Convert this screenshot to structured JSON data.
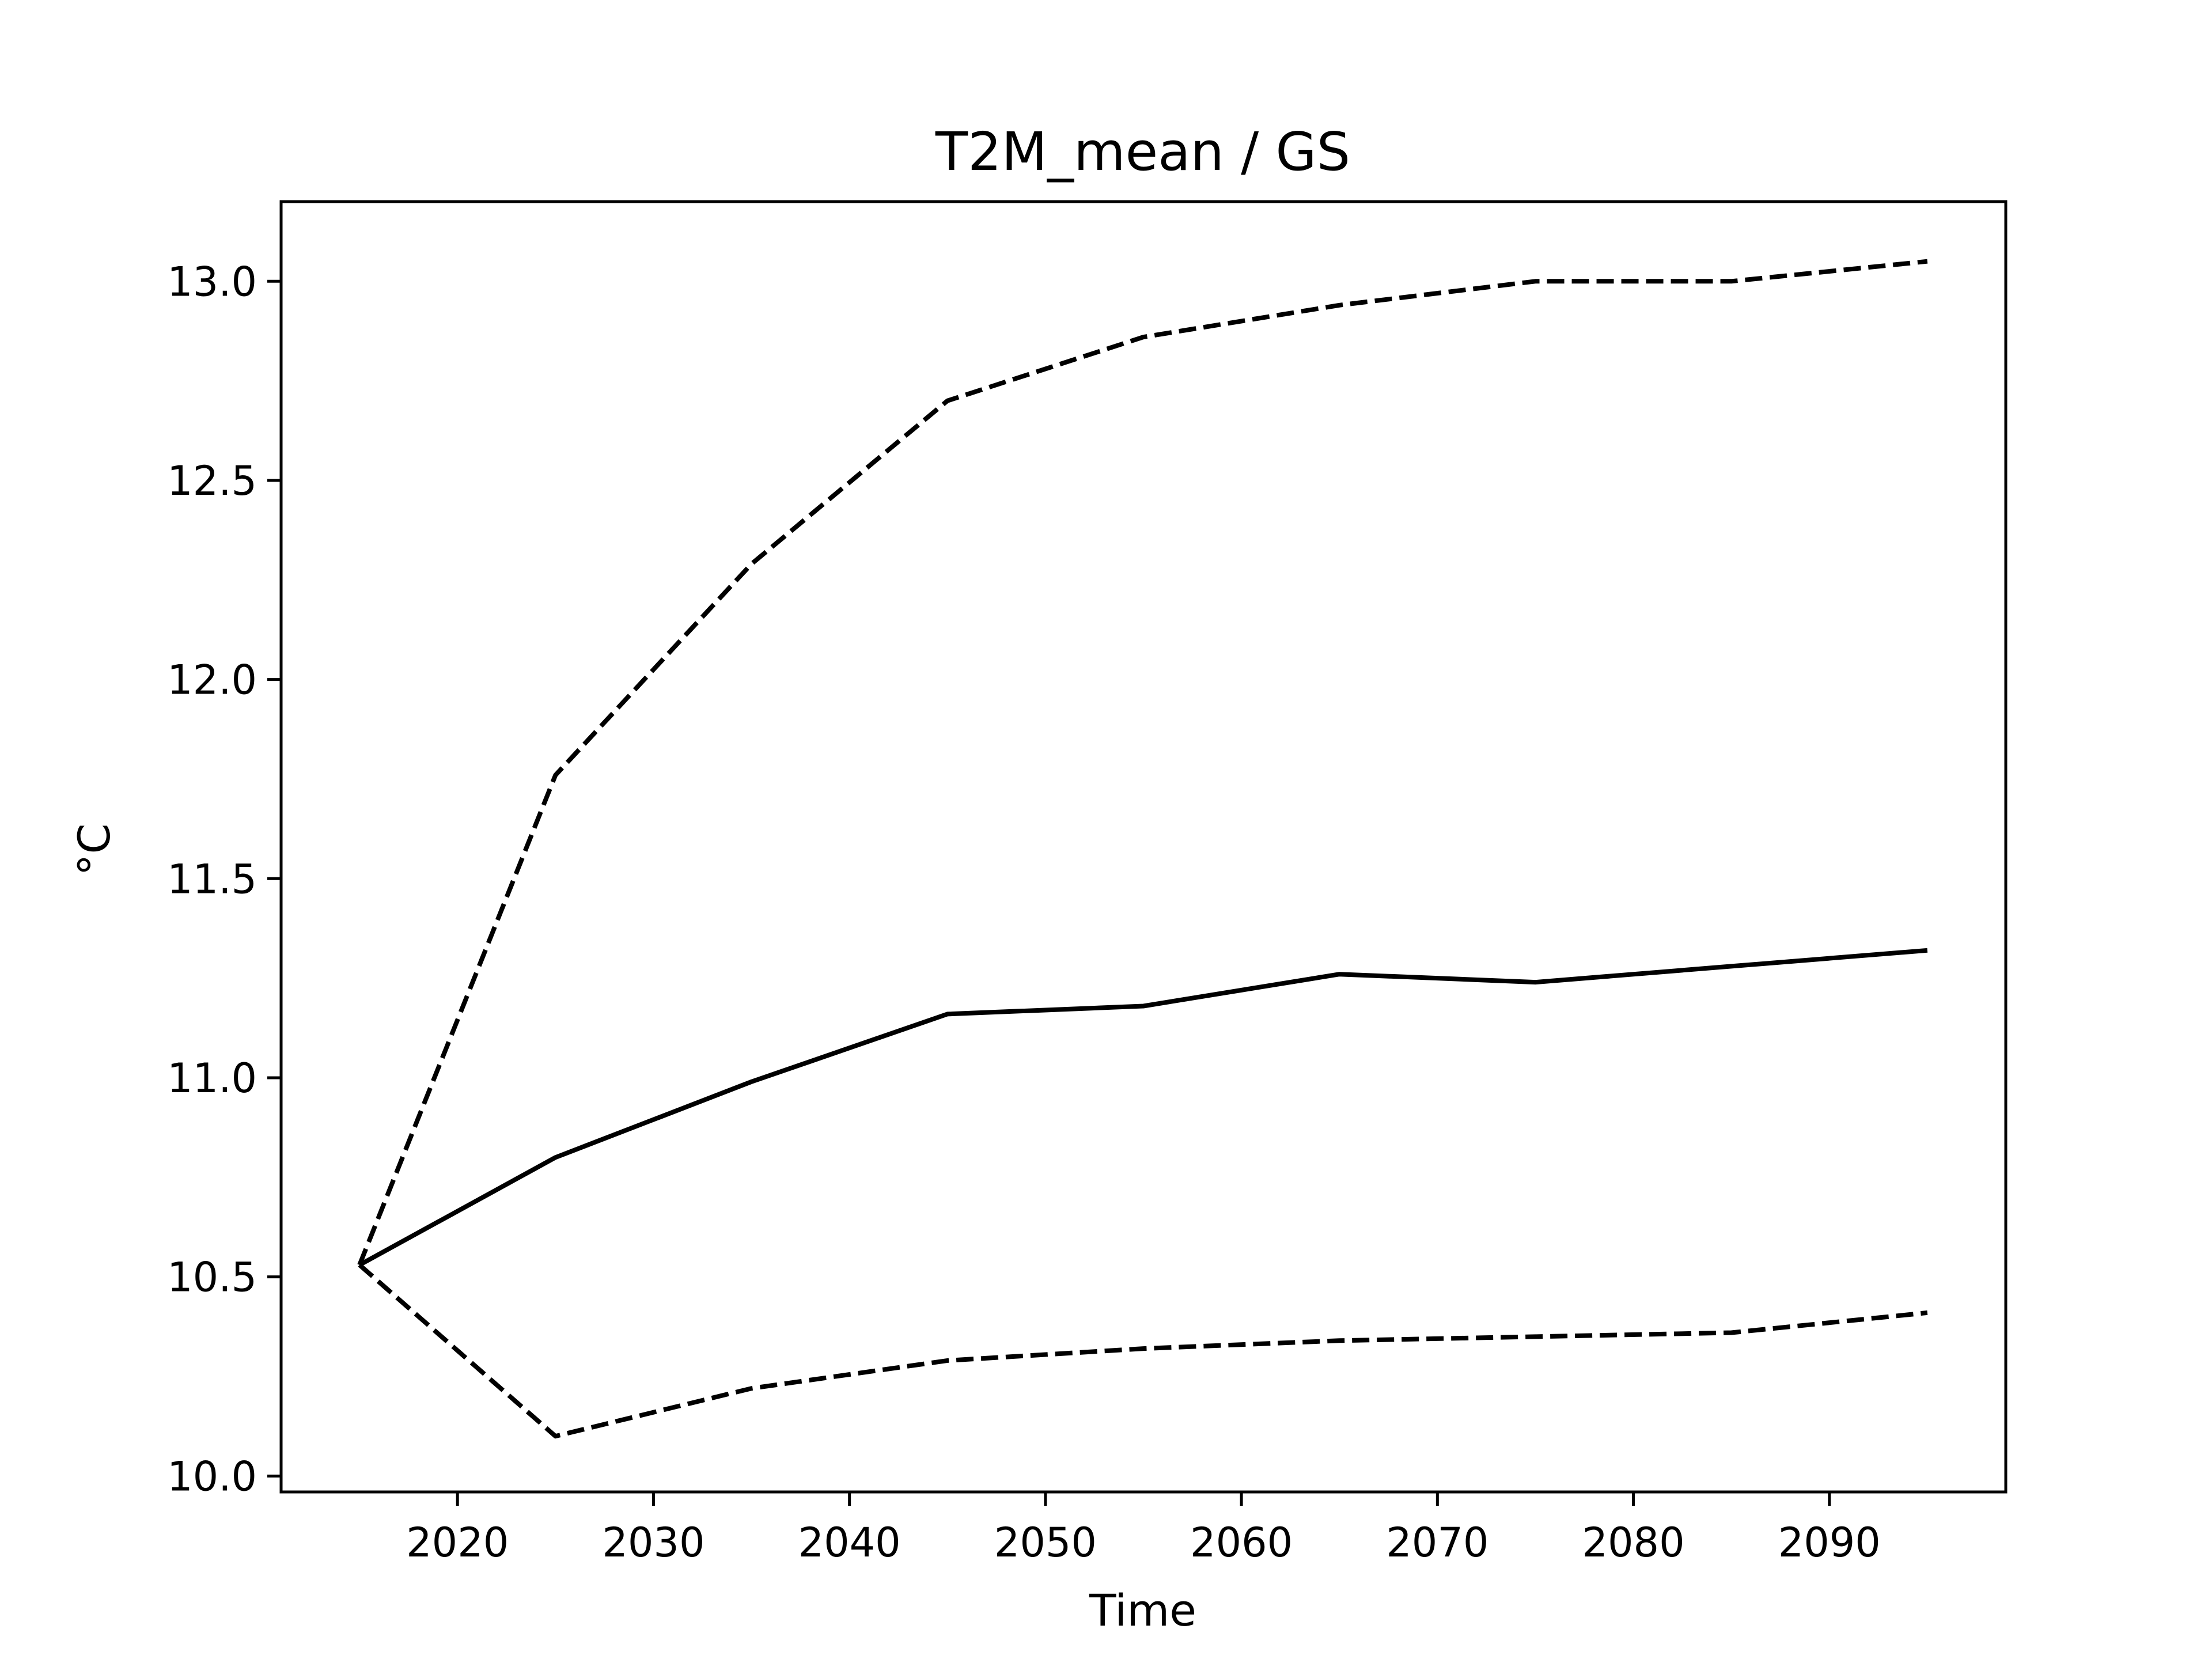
{
  "chart_data": {
    "type": "line",
    "title": "T2M_mean / GS",
    "xlabel": "Time",
    "ylabel": "°C",
    "xlim": [
      2011,
      2099
    ],
    "ylim": [
      9.96,
      13.2
    ],
    "x_ticks": [
      2020,
      2030,
      2040,
      2050,
      2060,
      2070,
      2080,
      2090
    ],
    "y_ticks": [
      10.0,
      10.5,
      11.0,
      11.5,
      12.0,
      12.5,
      13.0
    ],
    "y_tick_labels": [
      "10.0",
      "10.5",
      "11.0",
      "11.5",
      "12.0",
      "12.5",
      "13.0"
    ],
    "grid": false,
    "x": [
      2015,
      2025,
      2035,
      2045,
      2055,
      2065,
      2075,
      2085,
      2095
    ],
    "series": [
      {
        "style": "solid",
        "color": "#000000",
        "values": [
          10.53,
          10.8,
          10.99,
          11.16,
          11.18,
          11.26,
          11.24,
          11.28,
          11.32
        ]
      },
      {
        "style": "dashed",
        "color": "#000000",
        "values": [
          10.53,
          11.76,
          12.29,
          12.7,
          12.86,
          12.94,
          13.0,
          13.0,
          13.05
        ]
      },
      {
        "style": "dashed",
        "color": "#000000",
        "values": [
          10.53,
          10.1,
          10.22,
          10.29,
          10.32,
          10.34,
          10.35,
          10.36,
          10.41
        ]
      }
    ]
  }
}
